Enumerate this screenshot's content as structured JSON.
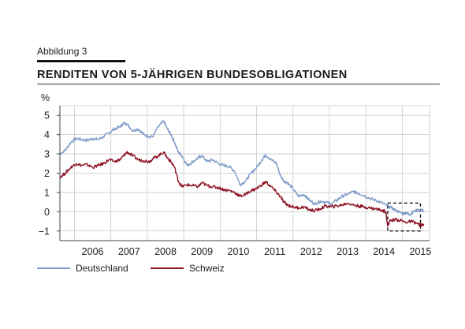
{
  "figure_label": "Abbildung 3",
  "title": "RENDITEN VON 5-JÄHRIGEN BUNDESOBLIGATIONEN",
  "colors": {
    "deutschland": "#7f9cc9",
    "schweiz": "#8e1424",
    "grid": "#c8c8c8",
    "axis": "#444444",
    "highlight_box": "#000000"
  },
  "chart_data": {
    "type": "line",
    "title": "",
    "xlabel": "",
    "ylabel": "%",
    "xlim": [
      2005.6,
      2015.75
    ],
    "ylim": [
      -1.5,
      5.5
    ],
    "y_ticks": [
      5,
      4,
      3,
      2,
      1,
      0,
      -1
    ],
    "y_tick_labels": [
      "5",
      "4",
      "3",
      "2",
      "1",
      "0",
      "−1"
    ],
    "x_tick_labels": [
      "2006",
      "2007",
      "2008",
      "2009",
      "2010",
      "2011",
      "2012",
      "2013",
      "2014",
      "2015"
    ],
    "grid": true,
    "legend_position": "bottom",
    "highlight_box": {
      "x": [
        2014.6,
        2015.5
      ],
      "y": [
        -1.0,
        0.45
      ]
    },
    "series": [
      {
        "name": "Deutschland",
        "x": [
          2005.6,
          2005.75,
          2005.9,
          2006.05,
          2006.2,
          2006.35,
          2006.5,
          2006.65,
          2006.8,
          2006.95,
          2007.1,
          2007.25,
          2007.35,
          2007.45,
          2007.6,
          2007.75,
          2007.9,
          2008.05,
          2008.15,
          2008.3,
          2008.45,
          2008.55,
          2008.65,
          2008.75,
          2008.85,
          2008.95,
          2009.1,
          2009.25,
          2009.4,
          2009.5,
          2009.65,
          2009.8,
          2009.95,
          2010.1,
          2010.25,
          2010.4,
          2010.55,
          2010.7,
          2010.85,
          2011.0,
          2011.15,
          2011.25,
          2011.4,
          2011.55,
          2011.65,
          2011.75,
          2011.85,
          2012.0,
          2012.15,
          2012.3,
          2012.45,
          2012.6,
          2012.75,
          2012.9,
          2013.05,
          2013.2,
          2013.35,
          2013.5,
          2013.65,
          2013.8,
          2013.95,
          2014.1,
          2014.25,
          2014.4,
          2014.55,
          2014.7,
          2014.85,
          2015.0,
          2015.1,
          2015.2,
          2015.3,
          2015.45,
          2015.6
        ],
        "values": [
          3.0,
          3.2,
          3.6,
          3.8,
          3.75,
          3.7,
          3.8,
          3.75,
          3.9,
          4.1,
          4.3,
          4.4,
          4.6,
          4.55,
          4.2,
          4.3,
          4.0,
          3.9,
          3.9,
          4.4,
          4.7,
          4.3,
          4.0,
          3.6,
          3.1,
          2.9,
          2.4,
          2.6,
          2.8,
          2.9,
          2.6,
          2.7,
          2.5,
          2.4,
          2.35,
          2.1,
          1.4,
          1.6,
          2.0,
          2.3,
          2.7,
          2.95,
          2.7,
          2.5,
          1.9,
          1.6,
          1.5,
          1.2,
          0.8,
          0.9,
          0.6,
          0.4,
          0.55,
          0.5,
          0.4,
          0.6,
          0.8,
          0.9,
          1.05,
          0.95,
          0.85,
          0.7,
          0.6,
          0.5,
          0.35,
          0.2,
          0.05,
          -0.1,
          -0.05,
          -0.15,
          0.0,
          0.1,
          0.05
        ]
      },
      {
        "name": "Schweiz",
        "x": [
          2005.6,
          2005.75,
          2005.9,
          2006.05,
          2006.2,
          2006.35,
          2006.5,
          2006.65,
          2006.8,
          2006.95,
          2007.1,
          2007.25,
          2007.35,
          2007.45,
          2007.6,
          2007.75,
          2007.9,
          2008.05,
          2008.15,
          2008.3,
          2008.45,
          2008.55,
          2008.65,
          2008.75,
          2008.85,
          2008.95,
          2009.1,
          2009.25,
          2009.4,
          2009.5,
          2009.65,
          2009.8,
          2009.95,
          2010.1,
          2010.25,
          2010.4,
          2010.55,
          2010.7,
          2010.85,
          2011.0,
          2011.15,
          2011.25,
          2011.4,
          2011.55,
          2011.65,
          2011.75,
          2011.85,
          2012.0,
          2012.15,
          2012.3,
          2012.45,
          2012.6,
          2012.75,
          2012.9,
          2013.05,
          2013.2,
          2013.35,
          2013.5,
          2013.65,
          2013.8,
          2013.95,
          2014.1,
          2014.25,
          2014.4,
          2014.55,
          2014.6,
          2014.65,
          2014.8,
          2014.95,
          2015.1,
          2015.25,
          2015.4,
          2015.5,
          2015.6
        ],
        "values": [
          1.8,
          2.0,
          2.3,
          2.5,
          2.4,
          2.45,
          2.3,
          2.4,
          2.5,
          2.7,
          2.6,
          2.7,
          2.9,
          3.1,
          2.9,
          2.7,
          2.65,
          2.6,
          2.75,
          2.9,
          3.1,
          2.8,
          2.6,
          2.3,
          1.6,
          1.3,
          1.4,
          1.35,
          1.3,
          1.5,
          1.35,
          1.3,
          1.25,
          1.15,
          1.1,
          1.0,
          0.8,
          0.9,
          1.1,
          1.2,
          1.4,
          1.55,
          1.3,
          1.0,
          0.8,
          0.5,
          0.35,
          0.25,
          0.2,
          0.25,
          0.1,
          0.05,
          0.15,
          0.3,
          0.25,
          0.3,
          0.35,
          0.45,
          0.35,
          0.3,
          0.25,
          0.2,
          0.15,
          0.1,
          0.0,
          -0.75,
          -0.5,
          -0.4,
          -0.45,
          -0.55,
          -0.5,
          -0.6,
          -0.7,
          -0.7
        ]
      }
    ]
  }
}
